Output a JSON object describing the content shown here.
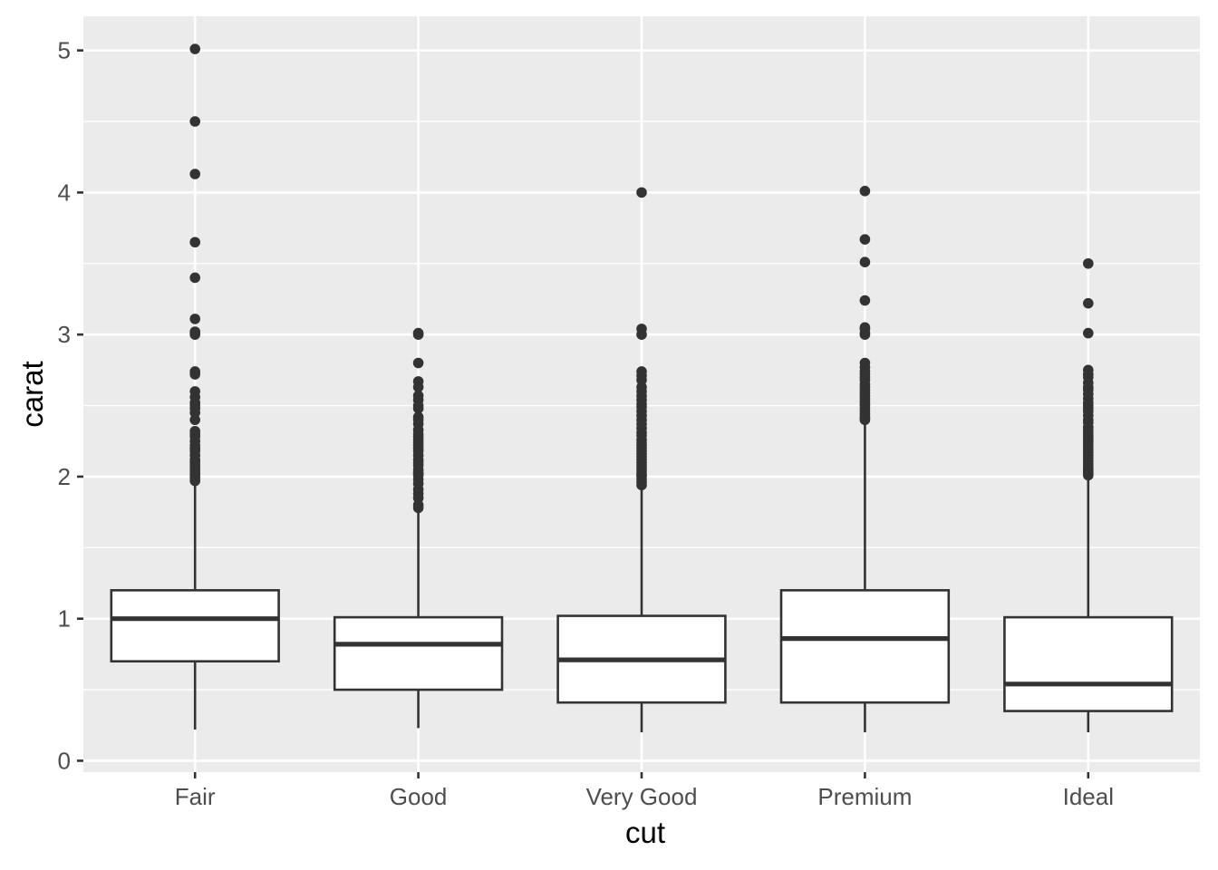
{
  "chart_data": {
    "type": "boxplot",
    "title": "",
    "xlabel": "cut",
    "ylabel": "carat",
    "ylim": [
      -0.08,
      5.24
    ],
    "yticks": [
      0,
      1,
      2,
      3,
      4,
      5
    ],
    "grid": true,
    "legend": "none",
    "colors": {
      "panel": "#ebebeb",
      "grid": "#ffffff",
      "box_fill": "#ffffff",
      "box_stroke": "#333333",
      "outlier": "#333333",
      "tick_label": "#4d4d4d",
      "axis_title": "#000000"
    },
    "categories": [
      "Fair",
      "Good",
      "Very Good",
      "Premium",
      "Ideal"
    ],
    "boxes": [
      {
        "category": "Fair",
        "whisker_low": 0.22,
        "q1": 0.7,
        "median": 1.0,
        "q3": 1.2,
        "whisker_high": 1.95,
        "outliers": [
          5.01,
          4.5,
          4.13,
          3.65,
          3.4,
          3.11,
          3.02,
          3.01,
          3.0,
          2.74,
          2.72,
          2.6,
          2.56,
          2.52,
          2.5,
          2.48,
          2.45,
          2.4,
          2.32,
          2.3,
          2.28,
          2.25,
          2.22,
          2.2,
          2.18,
          2.15,
          2.12,
          2.1,
          2.08,
          2.06,
          2.04,
          2.02,
          2.01,
          1.99,
          1.97
        ]
      },
      {
        "category": "Good",
        "whisker_low": 0.23,
        "q1": 0.5,
        "median": 0.82,
        "q3": 1.01,
        "whisker_high": 1.76,
        "outliers": [
          3.01,
          3.0,
          2.8,
          2.67,
          2.63,
          2.57,
          2.54,
          2.5,
          2.48,
          2.42,
          2.4,
          2.37,
          2.33,
          2.3,
          2.28,
          2.26,
          2.24,
          2.22,
          2.2,
          2.18,
          2.15,
          2.12,
          2.1,
          2.08,
          2.05,
          2.03,
          2.02,
          2.01,
          1.98,
          1.95,
          1.91,
          1.88,
          1.85,
          1.8,
          1.78
        ]
      },
      {
        "category": "Very Good",
        "whisker_low": 0.2,
        "q1": 0.41,
        "median": 0.71,
        "q3": 1.02,
        "whisker_high": 1.93,
        "outliers": [
          4.0,
          3.04,
          3.0,
          2.74,
          2.71,
          2.68,
          2.63,
          2.6,
          2.57,
          2.54,
          2.51,
          2.49,
          2.46,
          2.43,
          2.4,
          2.37,
          2.34,
          2.31,
          2.29,
          2.26,
          2.24,
          2.22,
          2.2,
          2.18,
          2.16,
          2.14,
          2.12,
          2.1,
          2.08,
          2.06,
          2.04,
          2.02,
          2.01,
          2.0,
          1.98,
          1.96,
          1.94
        ]
      },
      {
        "category": "Premium",
        "whisker_low": 0.2,
        "q1": 0.41,
        "median": 0.86,
        "q3": 1.2,
        "whisker_high": 2.39,
        "outliers": [
          4.01,
          3.67,
          3.51,
          3.24,
          3.05,
          3.04,
          3.01,
          3.0,
          2.8,
          2.77,
          2.74,
          2.72,
          2.7,
          2.68,
          2.65,
          2.63,
          2.61,
          2.59,
          2.57,
          2.55,
          2.53,
          2.51,
          2.5,
          2.48,
          2.46,
          2.44,
          2.42,
          2.41,
          2.4
        ]
      },
      {
        "category": "Ideal",
        "whisker_low": 0.2,
        "q1": 0.35,
        "median": 0.54,
        "q3": 1.01,
        "whisker_high": 2.0,
        "outliers": [
          3.5,
          3.22,
          3.01,
          2.75,
          2.72,
          2.7,
          2.66,
          2.63,
          2.61,
          2.58,
          2.55,
          2.52,
          2.5,
          2.48,
          2.46,
          2.43,
          2.4,
          2.38,
          2.35,
          2.33,
          2.31,
          2.29,
          2.27,
          2.25,
          2.23,
          2.21,
          2.19,
          2.17,
          2.15,
          2.13,
          2.11,
          2.09,
          2.07,
          2.05,
          2.04,
          2.03,
          2.02,
          2.01
        ]
      }
    ]
  }
}
